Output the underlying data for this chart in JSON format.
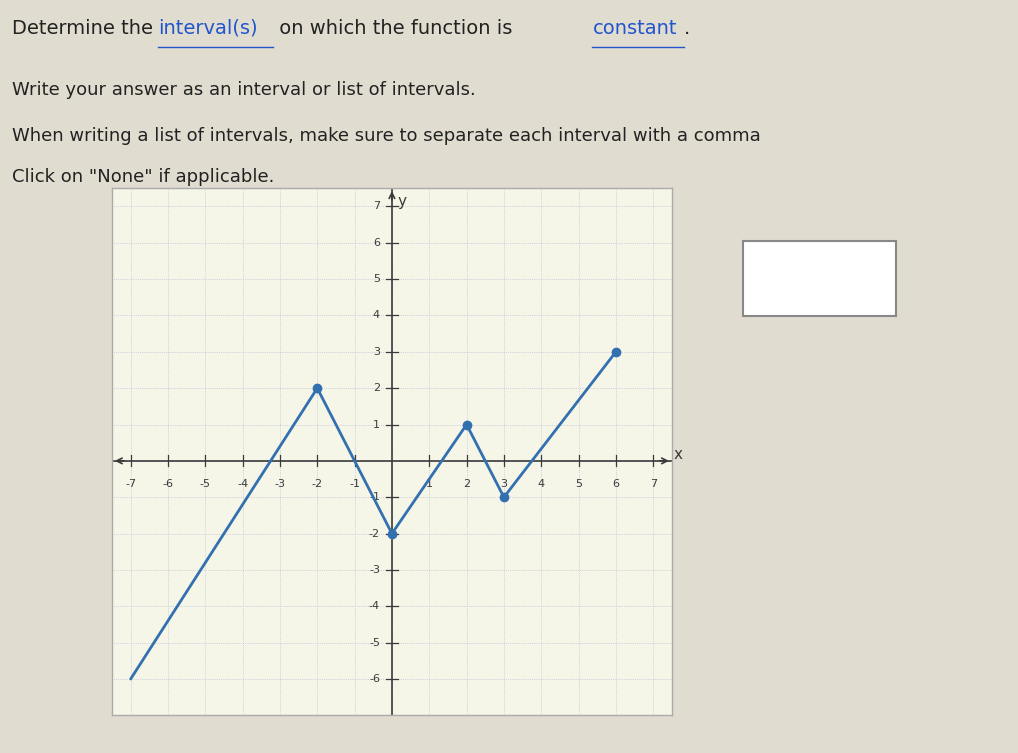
{
  "line1a": "Determine the ",
  "line1b": "interval(s)",
  "line1c": " on which the function is ",
  "line1d": "constant",
  "line1e": ".",
  "line2": "Write your answer as an interval or list of intervals.",
  "line3": "When writing a list of intervals, make sure to separate each interval with a comma",
  "line4": "Click on \"None\" if applicable.",
  "graph_points": [
    [
      -7,
      -6
    ],
    [
      -2,
      2
    ],
    [
      0,
      -2
    ],
    [
      2,
      1
    ],
    [
      3,
      -1
    ],
    [
      6,
      3
    ]
  ],
  "dot_points": [
    [
      -2,
      2
    ],
    [
      0,
      -2
    ],
    [
      2,
      1
    ],
    [
      3,
      -1
    ],
    [
      6,
      3
    ]
  ],
  "xlim": [
    -7.5,
    7.5
  ],
  "ylim": [
    -7,
    7.5
  ],
  "xticks": [
    -7,
    -6,
    -5,
    -4,
    -3,
    -2,
    -1,
    1,
    2,
    3,
    4,
    5,
    6,
    7
  ],
  "yticks": [
    -6,
    -5,
    -4,
    -3,
    -2,
    -1,
    1,
    2,
    3,
    4,
    5,
    6,
    7
  ],
  "graph_bg": "#f5f5e8",
  "line_color": "#3370b0",
  "dot_color": "#3370b0",
  "grid_color": "#b0b8d0",
  "axis_color": "#3a3a3a",
  "text_color": "#222222",
  "link_color": "#2255cc",
  "fig_bg": "#e0ddd0"
}
